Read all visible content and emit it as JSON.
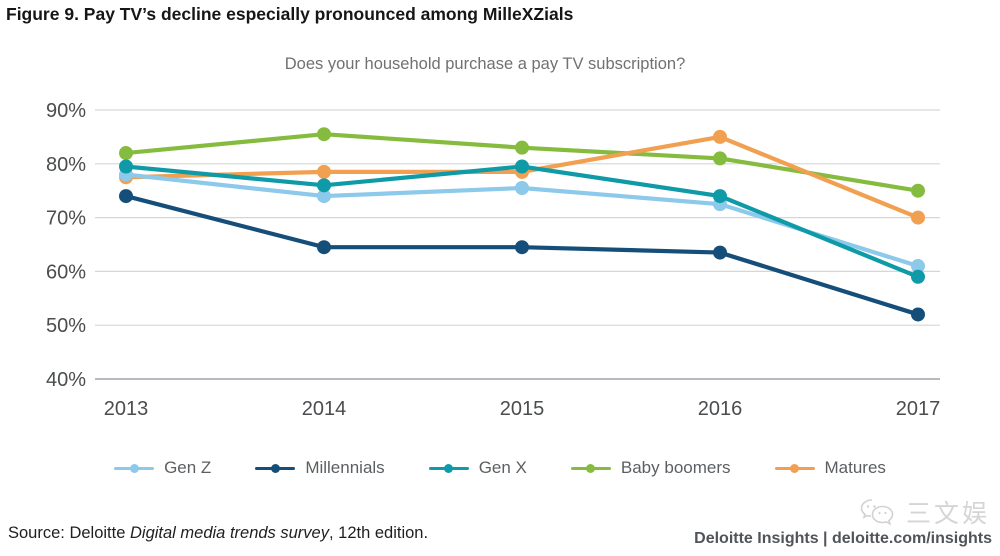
{
  "figure": {
    "title": "Figure 9. Pay TV’s decline especially pronounced among MilleXZials",
    "subtitle": "Does your household purchase a pay TV subscription?"
  },
  "chart_data": {
    "type": "line",
    "title": "Does your household purchase a pay TV subscription?",
    "x": [
      "2013",
      "2014",
      "2015",
      "2016",
      "2017"
    ],
    "series": [
      {
        "name": "Gen Z",
        "color": "#8cc9ea",
        "values": [
          78,
          74,
          75.5,
          72.5,
          61
        ]
      },
      {
        "name": "Millennials",
        "color": "#164e7a",
        "values": [
          74,
          64.5,
          64.5,
          63.5,
          52
        ]
      },
      {
        "name": "Gen X",
        "color": "#0e9aa7",
        "values": [
          79.5,
          76,
          79.5,
          74,
          59
        ]
      },
      {
        "name": "Baby boomers",
        "color": "#85bc3f",
        "values": [
          82,
          85.5,
          83,
          81,
          75
        ]
      },
      {
        "name": "Matures",
        "color": "#f0a050",
        "values": [
          77.5,
          78.5,
          78.5,
          85,
          70
        ]
      }
    ],
    "draw_order": [
      "Baby boomers",
      "Matures",
      "Gen Z",
      "Gen X",
      "Millennials"
    ],
    "xlabel": "",
    "ylabel": "",
    "ylim": [
      40,
      90
    ],
    "yticks": [
      90,
      80,
      70,
      60,
      50,
      40
    ],
    "ytick_suffix": "%",
    "grid": true,
    "legend_position": "bottom"
  },
  "colors": {
    "gridline": "#d4d6d9",
    "axis_line": "#9ea3a8",
    "tick_label": "#4a4c4e"
  },
  "footer": {
    "source_prefix": "Source: Deloitte ",
    "source_italic": "Digital media trends survey",
    "source_suffix": ", 12th edition.",
    "brand": "Deloitte Insights | deloitte.com/insights",
    "watermark": "三文娱"
  }
}
